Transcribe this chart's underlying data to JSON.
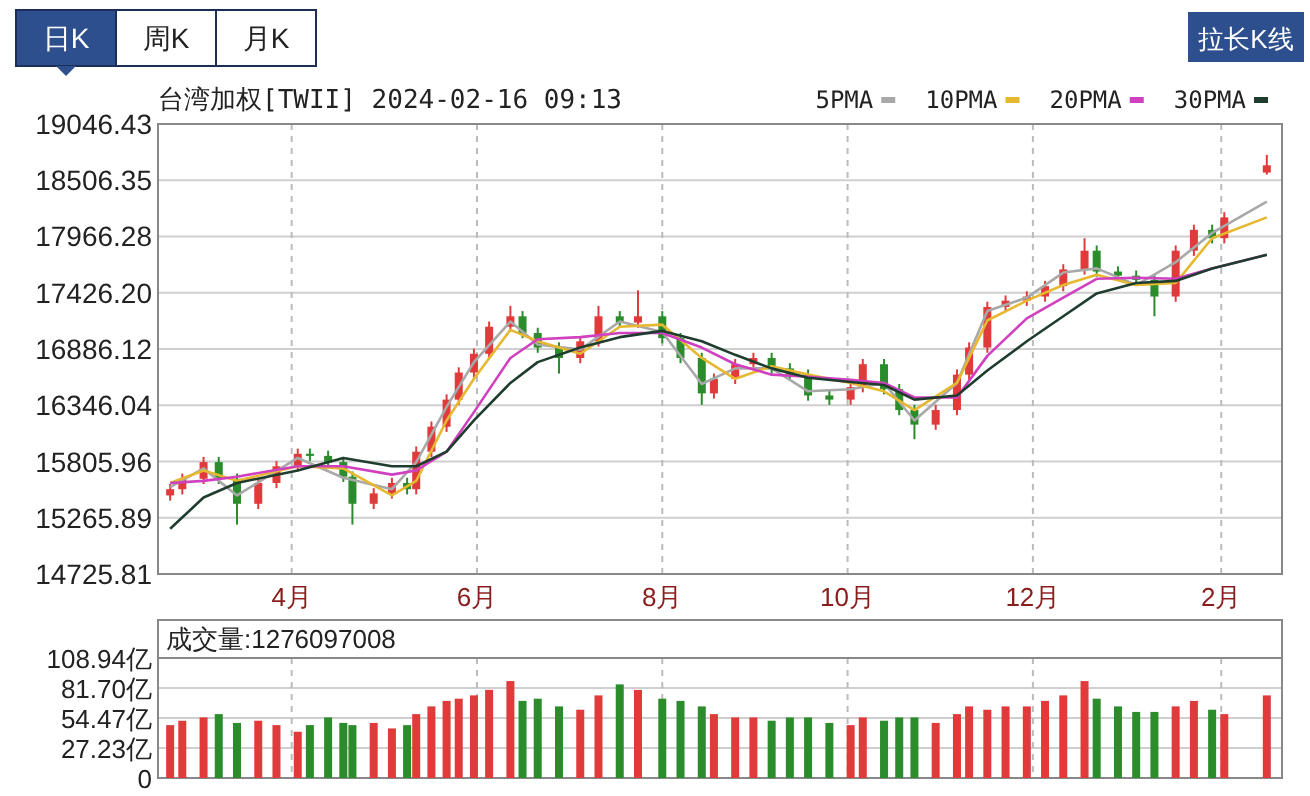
{
  "chart_data": [
    {
      "type": "candlestick",
      "title": "台湾加权[TWII] 2024-02-16 09:13",
      "annotations": [
        "日K",
        "周K",
        "月K",
        "拉长K线"
      ],
      "x": [
        "2023-02-20",
        "2023-02-24",
        "2023-03-03",
        "2023-03-08",
        "2023-03-14",
        "2023-03-21",
        "2023-03-27",
        "2023-04-03",
        "2023-04-07",
        "2023-04-13",
        "2023-04-18",
        "2023-04-21",
        "2023-04-28",
        "2023-05-04",
        "2023-05-09",
        "2023-05-12",
        "2023-05-17",
        "2023-05-22",
        "2023-05-26",
        "2023-05-31",
        "2023-06-05",
        "2023-06-12",
        "2023-06-16",
        "2023-06-21",
        "2023-06-28",
        "2023-07-05",
        "2023-07-11",
        "2023-07-18",
        "2023-07-24",
        "2023-08-01",
        "2023-08-07",
        "2023-08-14",
        "2023-08-18",
        "2023-08-25",
        "2023-08-31",
        "2023-09-06",
        "2023-09-12",
        "2023-09-18",
        "2023-09-25",
        "2023-10-02",
        "2023-10-06",
        "2023-10-13",
        "2023-10-18",
        "2023-10-23",
        "2023-10-30",
        "2023-11-06",
        "2023-11-10",
        "2023-11-16",
        "2023-11-22",
        "2023-11-29",
        "2023-12-05",
        "2023-12-11",
        "2023-12-18",
        "2023-12-22",
        "2023-12-29",
        "2024-01-04",
        "2024-01-10",
        "2024-01-17",
        "2024-01-23",
        "2024-01-29",
        "2024-02-02",
        "2024-02-16"
      ],
      "ohlc": [
        [
          15480,
          15590,
          15430,
          15540
        ],
        [
          15540,
          15690,
          15490,
          15640
        ],
        [
          15640,
          15850,
          15590,
          15800
        ],
        [
          15800,
          15850,
          15590,
          15640
        ],
        [
          15640,
          15690,
          15200,
          15400
        ],
        [
          15400,
          15650,
          15350,
          15600
        ],
        [
          15600,
          15810,
          15550,
          15760
        ],
        [
          15760,
          15930,
          15710,
          15880
        ],
        [
          15880,
          15930,
          15810,
          15860
        ],
        [
          15860,
          15910,
          15750,
          15800
        ],
        [
          15800,
          15850,
          15610,
          15660
        ],
        [
          15660,
          15710,
          15200,
          15400
        ],
        [
          15400,
          15550,
          15350,
          15500
        ],
        [
          15500,
          15650,
          15450,
          15600
        ],
        [
          15600,
          15650,
          15490,
          15540
        ],
        [
          15540,
          15950,
          15490,
          15900
        ],
        [
          15900,
          16190,
          15850,
          16140
        ],
        [
          16140,
          16450,
          16090,
          16400
        ],
        [
          16400,
          16710,
          16350,
          16660
        ],
        [
          16660,
          16890,
          16610,
          16840
        ],
        [
          16840,
          17150,
          16790,
          17100
        ],
        [
          17100,
          17300,
          17050,
          17200
        ],
        [
          17200,
          17250,
          16990,
          17040
        ],
        [
          17040,
          17090,
          16850,
          16900
        ],
        [
          16900,
          16950,
          16650,
          16800
        ],
        [
          16800,
          17010,
          16750,
          16960
        ],
        [
          16960,
          17300,
          16910,
          17200
        ],
        [
          17200,
          17250,
          17090,
          17140
        ],
        [
          17140,
          17450,
          17090,
          17200
        ],
        [
          17200,
          17250,
          16940,
          16990
        ],
        [
          16990,
          17040,
          16750,
          16800
        ],
        [
          16800,
          16850,
          16350,
          16460
        ],
        [
          16460,
          16650,
          16410,
          16600
        ],
        [
          16600,
          16790,
          16550,
          16740
        ],
        [
          16740,
          16850,
          16690,
          16800
        ],
        [
          16800,
          16850,
          16650,
          16700
        ],
        [
          16700,
          16750,
          16590,
          16640
        ],
        [
          16640,
          16690,
          16390,
          16440
        ],
        [
          16440,
          16490,
          16350,
          16400
        ],
        [
          16400,
          16570,
          16350,
          16520
        ],
        [
          16520,
          16790,
          16470,
          16740
        ],
        [
          16740,
          16790,
          16450,
          16500
        ],
        [
          16500,
          16550,
          16250,
          16300
        ],
        [
          16300,
          16350,
          16020,
          16160
        ],
        [
          16160,
          16350,
          16110,
          16300
        ],
        [
          16300,
          16690,
          16250,
          16640
        ],
        [
          16640,
          16950,
          16590,
          16900
        ],
        [
          16900,
          17340,
          16850,
          17290
        ],
        [
          17290,
          17400,
          17240,
          17350
        ],
        [
          17350,
          17440,
          17300,
          17390
        ],
        [
          17390,
          17540,
          17340,
          17490
        ],
        [
          17490,
          17700,
          17440,
          17650
        ],
        [
          17650,
          17950,
          17600,
          17830
        ],
        [
          17830,
          17880,
          17580,
          17630
        ],
        [
          17630,
          17680,
          17540,
          17590
        ],
        [
          17590,
          17640,
          17500,
          17550
        ],
        [
          17550,
          17600,
          17200,
          17390
        ],
        [
          17390,
          17880,
          17340,
          17830
        ],
        [
          17830,
          18080,
          17780,
          18030
        ],
        [
          18030,
          18080,
          17900,
          17950
        ],
        [
          17950,
          18200,
          17900,
          18150
        ],
        [
          18580,
          18750,
          18560,
          18650
        ]
      ],
      "colors": [
        "#e03a3a",
        "#e03a3a",
        "#e03a3a",
        "#2b8c2b",
        "#2b8c2b",
        "#e03a3a",
        "#e03a3a",
        "#e03a3a",
        "#2b8c2b",
        "#2b8c2b",
        "#2b8c2b",
        "#2b8c2b",
        "#e03a3a",
        "#e03a3a",
        "#2b8c2b",
        "#e03a3a",
        "#e03a3a",
        "#e03a3a",
        "#e03a3a",
        "#e03a3a",
        "#e03a3a",
        "#e03a3a",
        "#2b8c2b",
        "#2b8c2b",
        "#2b8c2b",
        "#e03a3a",
        "#e03a3a",
        "#2b8c2b",
        "#e03a3a",
        "#2b8c2b",
        "#2b8c2b",
        "#2b8c2b",
        "#e03a3a",
        "#e03a3a",
        "#e03a3a",
        "#2b8c2b",
        "#2b8c2b",
        "#2b8c2b",
        "#2b8c2b",
        "#e03a3a",
        "#e03a3a",
        "#2b8c2b",
        "#2b8c2b",
        "#2b8c2b",
        "#e03a3a",
        "#e03a3a",
        "#e03a3a",
        "#e03a3a",
        "#e03a3a",
        "#e03a3a",
        "#e03a3a",
        "#e03a3a",
        "#e03a3a",
        "#2b8c2b",
        "#2b8c2b",
        "#2b8c2b",
        "#2b8c2b",
        "#e03a3a",
        "#e03a3a",
        "#2b8c2b",
        "#e03a3a",
        "#e03a3a"
      ],
      "series": [
        {
          "name": "5PMA",
          "type": "line",
          "color": "#a8a8a8",
          "x": [
            "2023-02-20",
            "2023-03-03",
            "2023-03-14",
            "2023-04-03",
            "2023-04-18",
            "2023-05-04",
            "2023-05-12",
            "2023-05-22",
            "2023-05-31",
            "2023-06-12",
            "2023-06-21",
            "2023-07-05",
            "2023-07-18",
            "2023-08-01",
            "2023-08-14",
            "2023-08-25",
            "2023-09-06",
            "2023-09-18",
            "2023-10-02",
            "2023-10-13",
            "2023-10-23",
            "2023-11-06",
            "2023-11-16",
            "2023-11-29",
            "2023-12-11",
            "2023-12-22",
            "2024-01-04",
            "2024-01-17",
            "2024-01-29",
            "2024-02-16"
          ],
          "values": [
            15560,
            15740,
            15480,
            15840,
            15650,
            15540,
            15800,
            16330,
            16760,
            17150,
            16930,
            16880,
            17150,
            17050,
            16550,
            16700,
            16700,
            16480,
            16500,
            16560,
            16200,
            16560,
            17250,
            17380,
            17620,
            17660,
            17500,
            17720,
            18000,
            18300
          ]
        },
        {
          "name": "10PMA",
          "type": "line",
          "color": "#e6b830",
          "x": [
            "2023-02-20",
            "2023-03-03",
            "2023-03-14",
            "2023-04-03",
            "2023-04-18",
            "2023-05-04",
            "2023-05-12",
            "2023-05-22",
            "2023-05-31",
            "2023-06-12",
            "2023-06-21",
            "2023-07-05",
            "2023-07-18",
            "2023-08-01",
            "2023-08-14",
            "2023-08-25",
            "2023-09-06",
            "2023-09-18",
            "2023-10-02",
            "2023-10-13",
            "2023-10-23",
            "2023-11-06",
            "2023-11-16",
            "2023-11-29",
            "2023-12-11",
            "2023-12-22",
            "2024-01-04",
            "2024-01-17",
            "2024-01-29",
            "2024-02-16"
          ],
          "values": [
            15600,
            15720,
            15620,
            15760,
            15740,
            15480,
            15620,
            16200,
            16600,
            17070,
            16960,
            16840,
            17100,
            17120,
            16800,
            16600,
            16720,
            16640,
            16560,
            16480,
            16300,
            16560,
            17160,
            17350,
            17500,
            17600,
            17500,
            17520,
            17950,
            18150
          ]
        },
        {
          "name": "20PMA",
          "type": "line",
          "color": "#d040c0",
          "x": [
            "2023-02-20",
            "2023-03-03",
            "2023-03-14",
            "2023-04-03",
            "2023-04-18",
            "2023-05-04",
            "2023-05-12",
            "2023-05-22",
            "2023-05-31",
            "2023-06-12",
            "2023-06-21",
            "2023-07-05",
            "2023-07-18",
            "2023-08-01",
            "2023-08-14",
            "2023-08-25",
            "2023-09-06",
            "2023-09-18",
            "2023-10-02",
            "2023-10-13",
            "2023-10-23",
            "2023-11-06",
            "2023-11-16",
            "2023-11-29",
            "2023-12-11",
            "2023-12-22",
            "2024-01-04",
            "2024-01-17",
            "2024-01-29",
            "2024-02-16"
          ],
          "values": [
            15600,
            15620,
            15660,
            15760,
            15760,
            15680,
            15720,
            15900,
            16280,
            16800,
            16980,
            17000,
            17040,
            17040,
            16900,
            16740,
            16640,
            16620,
            16590,
            16560,
            16420,
            16420,
            16820,
            17180,
            17380,
            17560,
            17570,
            17560,
            17660,
            17790
          ]
        },
        {
          "name": "30PMA",
          "type": "line",
          "color": "#1f3d2e",
          "x": [
            "2023-02-20",
            "2023-03-03",
            "2023-03-14",
            "2023-04-03",
            "2023-04-18",
            "2023-05-04",
            "2023-05-12",
            "2023-05-22",
            "2023-05-31",
            "2023-06-12",
            "2023-06-21",
            "2023-07-05",
            "2023-07-18",
            "2023-08-01",
            "2023-08-14",
            "2023-08-25",
            "2023-09-06",
            "2023-09-18",
            "2023-10-02",
            "2023-10-13",
            "2023-10-23",
            "2023-11-06",
            "2023-11-16",
            "2023-11-29",
            "2023-12-11",
            "2023-12-22",
            "2024-01-04",
            "2024-01-17",
            "2024-01-29",
            "2024-02-16"
          ],
          "values": [
            15160,
            15460,
            15600,
            15720,
            15840,
            15760,
            15760,
            15900,
            16200,
            16560,
            16760,
            16900,
            17000,
            17060,
            16960,
            16830,
            16700,
            16610,
            16570,
            16540,
            16400,
            16440,
            16680,
            16960,
            17200,
            17420,
            17520,
            17540,
            17660,
            17790
          ]
        }
      ],
      "xlim": [
        "2023-02-16",
        "2024-02-21"
      ],
      "xticks": [
        {
          "value": "2023-04-01",
          "label": "4月"
        },
        {
          "value": "2023-06-01",
          "label": "6月"
        },
        {
          "value": "2023-08-01",
          "label": "8月"
        },
        {
          "value": "2023-10-01",
          "label": "10月"
        },
        {
          "value": "2023-12-01",
          "label": "12月"
        },
        {
          "value": "2024-02-01",
          "label": "2月"
        }
      ],
      "ylim": [
        14725.81,
        19046.43
      ],
      "yticks": [
        14725.81,
        15265.89,
        15805.96,
        16346.04,
        16886.12,
        {
          "value": 17426.2,
          "label": "17426.20"
        },
        17966.28,
        18506.35,
        19046.43
      ],
      "grid": true,
      "legend": "top right"
    },
    {
      "type": "bar",
      "annotations": [
        "成交量:1276097008"
      ],
      "x": [
        "2023-02-20",
        "2023-02-24",
        "2023-03-03",
        "2023-03-08",
        "2023-03-14",
        "2023-03-21",
        "2023-03-27",
        "2023-04-03",
        "2023-04-07",
        "2023-04-13",
        "2023-04-18",
        "2023-04-21",
        "2023-04-28",
        "2023-05-04",
        "2023-05-09",
        "2023-05-12",
        "2023-05-17",
        "2023-05-22",
        "2023-05-26",
        "2023-05-31",
        "2023-06-05",
        "2023-06-12",
        "2023-06-16",
        "2023-06-21",
        "2023-06-28",
        "2023-07-05",
        "2023-07-11",
        "2023-07-18",
        "2023-07-24",
        "2023-08-01",
        "2023-08-07",
        "2023-08-14",
        "2023-08-18",
        "2023-08-25",
        "2023-08-31",
        "2023-09-06",
        "2023-09-12",
        "2023-09-18",
        "2023-09-25",
        "2023-10-02",
        "2023-10-06",
        "2023-10-13",
        "2023-10-18",
        "2023-10-23",
        "2023-10-30",
        "2023-11-06",
        "2023-11-10",
        "2023-11-16",
        "2023-11-22",
        "2023-11-29",
        "2023-12-05",
        "2023-12-11",
        "2023-12-18",
        "2023-12-22",
        "2023-12-29",
        "2024-01-04",
        "2024-01-10",
        "2024-01-17",
        "2024-01-23",
        "2024-01-29",
        "2024-02-02",
        "2024-02-16"
      ],
      "values": [
        48,
        52,
        55,
        58,
        50,
        52,
        48,
        42,
        48,
        55,
        50,
        48,
        50,
        45,
        48,
        58,
        65,
        70,
        72,
        75,
        80,
        88,
        70,
        72,
        65,
        62,
        75,
        85,
        80,
        72,
        70,
        65,
        58,
        55,
        55,
        52,
        55,
        55,
        50,
        48,
        55,
        52,
        55,
        55,
        50,
        58,
        65,
        62,
        65,
        65,
        70,
        75,
        88,
        72,
        65,
        60,
        60,
        65,
        70,
        62,
        58,
        75
      ],
      "colors": [
        "#e03a3a",
        "#e03a3a",
        "#e03a3a",
        "#2b8c2b",
        "#2b8c2b",
        "#e03a3a",
        "#e03a3a",
        "#e03a3a",
        "#2b8c2b",
        "#2b8c2b",
        "#2b8c2b",
        "#2b8c2b",
        "#e03a3a",
        "#e03a3a",
        "#2b8c2b",
        "#e03a3a",
        "#e03a3a",
        "#e03a3a",
        "#e03a3a",
        "#e03a3a",
        "#e03a3a",
        "#e03a3a",
        "#2b8c2b",
        "#2b8c2b",
        "#2b8c2b",
        "#e03a3a",
        "#e03a3a",
        "#2b8c2b",
        "#e03a3a",
        "#2b8c2b",
        "#2b8c2b",
        "#2b8c2b",
        "#e03a3a",
        "#e03a3a",
        "#e03a3a",
        "#2b8c2b",
        "#2b8c2b",
        "#2b8c2b",
        "#2b8c2b",
        "#e03a3a",
        "#e03a3a",
        "#2b8c2b",
        "#2b8c2b",
        "#2b8c2b",
        "#e03a3a",
        "#e03a3a",
        "#e03a3a",
        "#e03a3a",
        "#e03a3a",
        "#e03a3a",
        "#e03a3a",
        "#e03a3a",
        "#e03a3a",
        "#2b8c2b",
        "#2b8c2b",
        "#2b8c2b",
        "#2b8c2b",
        "#e03a3a",
        "#e03a3a",
        "#2b8c2b",
        "#e03a3a",
        "#e03a3a"
      ],
      "xlim": [
        "2023-02-16",
        "2024-02-21"
      ],
      "xticks": [
        {
          "value": "2023-04-01",
          "label": null
        },
        {
          "value": "2023-06-01",
          "label": null
        },
        {
          "value": "2023-08-01",
          "label": null
        },
        {
          "value": "2023-10-01",
          "label": null
        },
        {
          "value": "2023-12-01",
          "label": null
        },
        {
          "value": "2024-02-01",
          "label": null
        }
      ],
      "ylim": [
        0,
        108.94
      ],
      "yticks": [
        0,
        {
          "value": 27.23,
          "label": "27.23亿"
        },
        {
          "value": 54.47,
          "label": "54.47亿"
        },
        {
          "value": 81.7,
          "label": "81.70亿"
        },
        {
          "value": 108.94,
          "label": "108.94亿"
        }
      ],
      "tick_labels": "y",
      "grid": true
    }
  ]
}
